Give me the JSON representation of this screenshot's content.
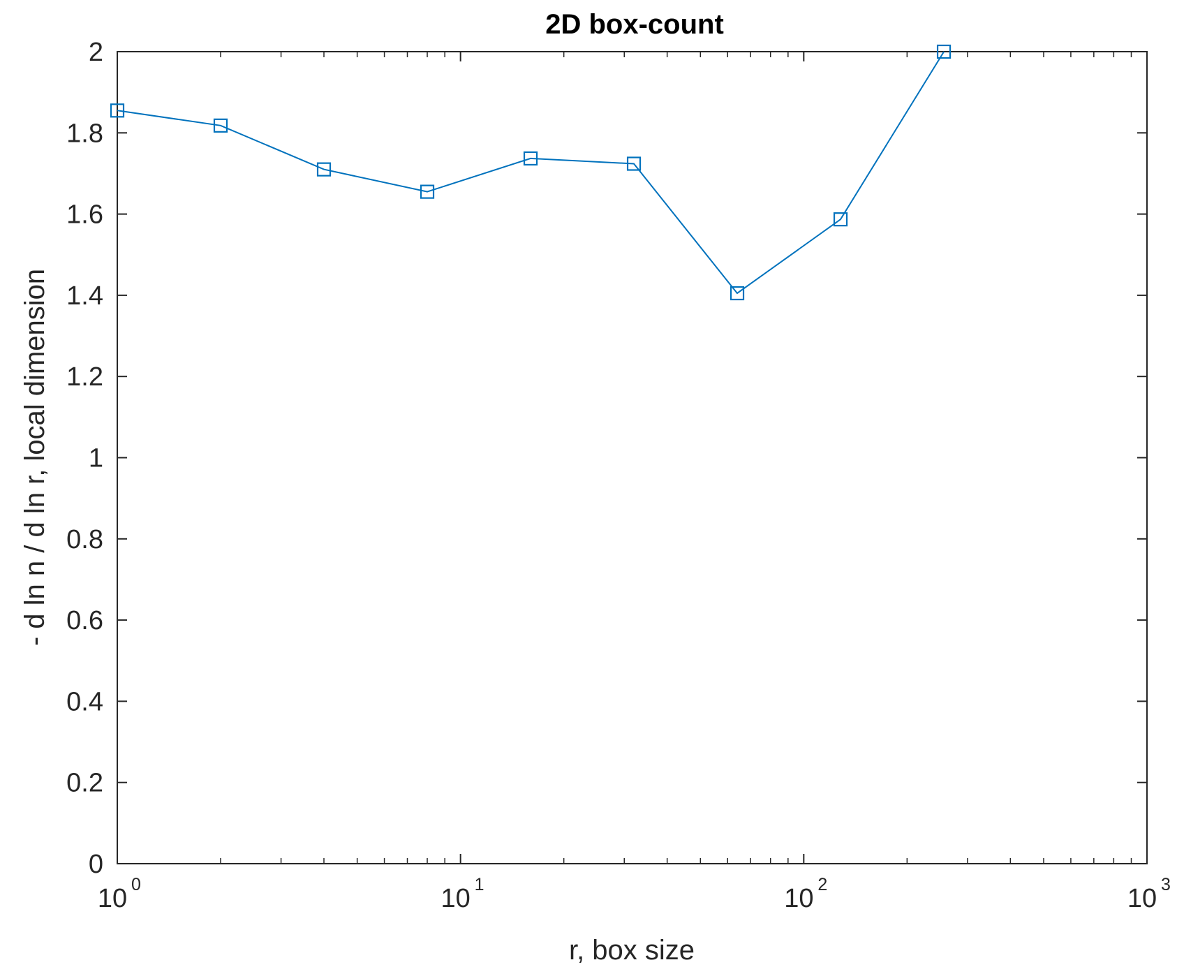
{
  "chart_data": {
    "type": "line",
    "title": "2D box-count",
    "xlabel": "r, box size",
    "ylabel": "- d ln n / d ln r, local dimension",
    "x_scale": "log",
    "xlim": [
      1,
      1000
    ],
    "ylim": [
      0,
      2
    ],
    "x_ticks": [
      {
        "base": "10",
        "exp": "0"
      },
      {
        "base": "10",
        "exp": "1"
      },
      {
        "base": "10",
        "exp": "2"
      },
      {
        "base": "10",
        "exp": "3"
      }
    ],
    "y_ticks": [
      "0",
      "0.2",
      "0.4",
      "0.6",
      "0.8",
      "1",
      "1.2",
      "1.4",
      "1.6",
      "1.8",
      "2"
    ],
    "grid": false,
    "marker": "square",
    "color": "#0072BD",
    "series": [
      {
        "x": [
          1,
          2,
          4,
          8,
          16,
          32,
          64,
          128,
          256
        ],
        "y": [
          1.855,
          1.818,
          1.71,
          1.655,
          1.737,
          1.724,
          1.405,
          1.587,
          2.0
        ]
      }
    ]
  }
}
